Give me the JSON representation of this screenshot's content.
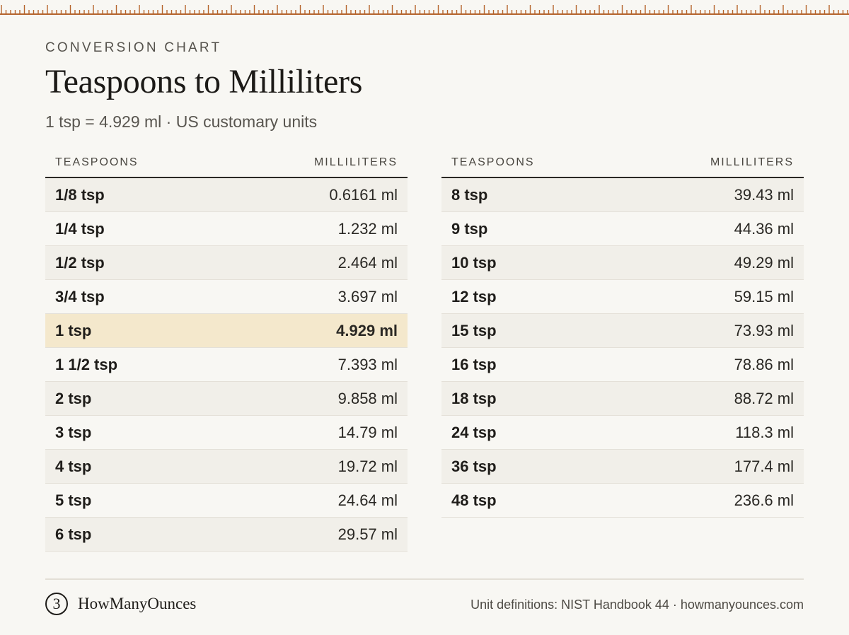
{
  "header": {
    "eyebrow": "CONVERSION CHART",
    "title": "Teaspoons to Milliliters",
    "subtitle": "1 tsp = 4.929 ml · US customary units"
  },
  "table_left": {
    "col_teaspoons": "TEASPOONS",
    "col_milliliters": "MILLILITERS",
    "rows": [
      {
        "tsp": "1/8 tsp",
        "ml": "0.6161 ml"
      },
      {
        "tsp": "1/4 tsp",
        "ml": "1.232 ml"
      },
      {
        "tsp": "1/2 tsp",
        "ml": "2.464 ml"
      },
      {
        "tsp": "3/4 tsp",
        "ml": "3.697 ml"
      },
      {
        "tsp": "1 tsp",
        "ml": "4.929 ml",
        "highlighted": true
      },
      {
        "tsp": "1 1/2 tsp",
        "ml": "7.393 ml"
      },
      {
        "tsp": "2 tsp",
        "ml": "9.858 ml"
      },
      {
        "tsp": "3 tsp",
        "ml": "14.79 ml"
      },
      {
        "tsp": "4 tsp",
        "ml": "19.72 ml"
      },
      {
        "tsp": "5 tsp",
        "ml": "24.64 ml"
      },
      {
        "tsp": "6 tsp",
        "ml": "29.57 ml"
      }
    ]
  },
  "table_right": {
    "col_teaspoons": "TEASPOONS",
    "col_milliliters": "MILLILITERS",
    "rows": [
      {
        "tsp": "8 tsp",
        "ml": "39.43 ml"
      },
      {
        "tsp": "9 tsp",
        "ml": "44.36 ml"
      },
      {
        "tsp": "10 tsp",
        "ml": "49.29 ml"
      },
      {
        "tsp": "12 tsp",
        "ml": "59.15 ml"
      },
      {
        "tsp": "15 tsp",
        "ml": "73.93 ml"
      },
      {
        "tsp": "16 tsp",
        "ml": "78.86 ml"
      },
      {
        "tsp": "18 tsp",
        "ml": "88.72 ml"
      },
      {
        "tsp": "24 tsp",
        "ml": "118.3 ml"
      },
      {
        "tsp": "36 tsp",
        "ml": "177.4 ml"
      },
      {
        "tsp": "48 tsp",
        "ml": "236.6 ml"
      }
    ]
  },
  "footer": {
    "logo_glyph": "3",
    "logo_icon": "logo-circle-icon",
    "brand": "HowManyOunces",
    "source": "Unit definitions: NIST Handbook 44 · howmanyounces.com"
  },
  "colors": {
    "ruler": "#b5652d",
    "highlight": "#f4e8cc",
    "background": "#f8f7f3"
  }
}
